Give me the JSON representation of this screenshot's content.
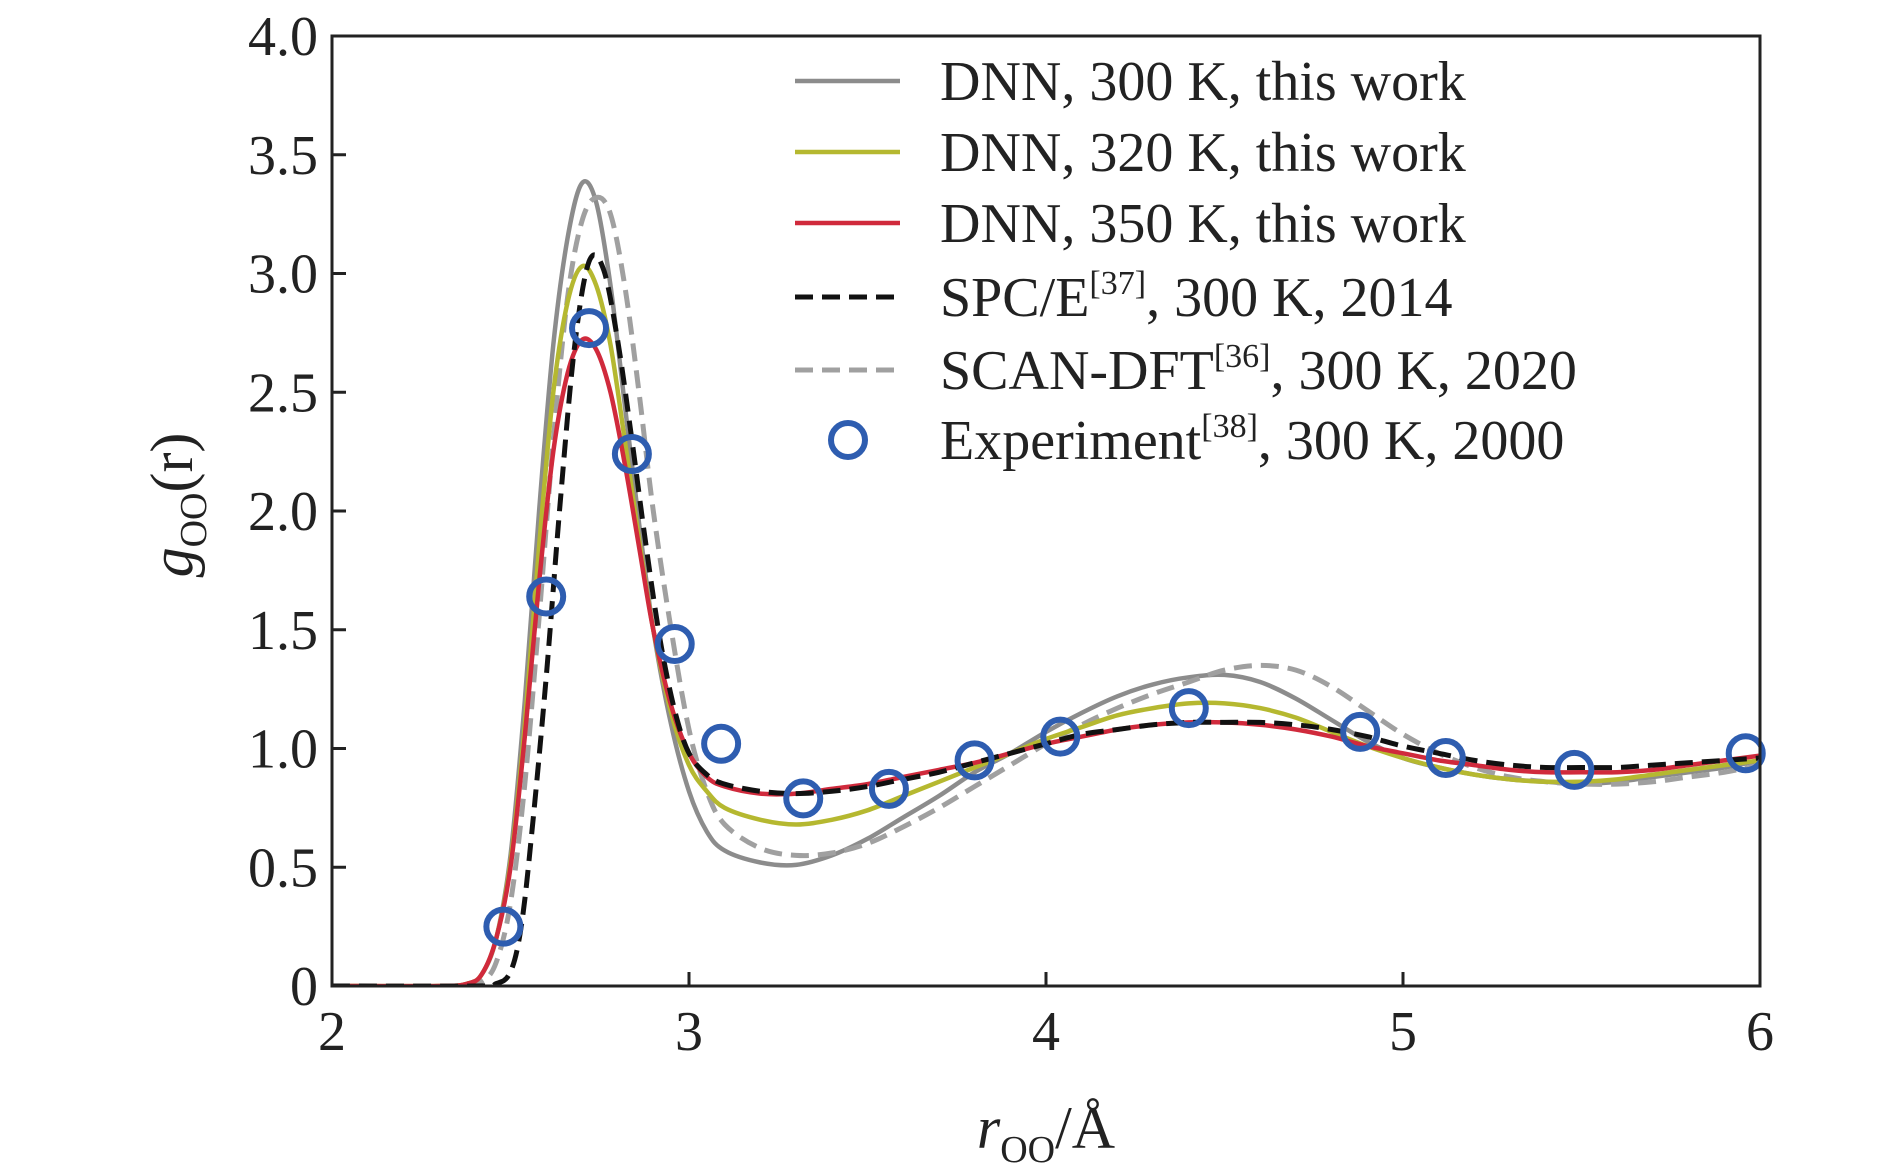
{
  "chart_data": {
    "type": "line",
    "xlabel": {
      "main": "r",
      "sub": "OO",
      "rest": "/Å"
    },
    "ylabel": {
      "main": "g",
      "sub": "OO",
      "rest": "(r)"
    },
    "xlim": [
      2,
      6
    ],
    "ylim": [
      0,
      4.0
    ],
    "xticks": [
      {
        "value": 2,
        "label": "2"
      },
      {
        "value": 3,
        "label": "3"
      },
      {
        "value": 4,
        "label": "4"
      },
      {
        "value": 5,
        "label": "5"
      },
      {
        "value": 6,
        "label": "6"
      }
    ],
    "yticks": [
      {
        "value": 0,
        "label": "0"
      },
      {
        "value": 0.5,
        "label": "0.5"
      },
      {
        "value": 1.0,
        "label": "1.0"
      },
      {
        "value": 1.5,
        "label": "1.5"
      },
      {
        "value": 2.0,
        "label": "2.0"
      },
      {
        "value": 2.5,
        "label": "2.5"
      },
      {
        "value": 3.0,
        "label": "3.0"
      },
      {
        "value": 3.5,
        "label": "3.5"
      },
      {
        "value": 4.0,
        "label": "4.0"
      }
    ],
    "grid": false,
    "legend_position": "top-right",
    "series": [
      {
        "id": "dnn300",
        "label_main": "DNN, 300 K, this work",
        "label_sup": "",
        "label_rest": "",
        "color": "#8c8c8c",
        "style": "solid",
        "points": [
          [
            2.0,
            0
          ],
          [
            2.3,
            0
          ],
          [
            2.38,
            0.01
          ],
          [
            2.42,
            0.05
          ],
          [
            2.46,
            0.2
          ],
          [
            2.5,
            0.55
          ],
          [
            2.54,
            1.2
          ],
          [
            2.58,
            2.0
          ],
          [
            2.62,
            2.7
          ],
          [
            2.66,
            3.15
          ],
          [
            2.7,
            3.38
          ],
          [
            2.74,
            3.3
          ],
          [
            2.78,
            2.95
          ],
          [
            2.82,
            2.45
          ],
          [
            2.86,
            1.95
          ],
          [
            2.9,
            1.5
          ],
          [
            2.95,
            1.1
          ],
          [
            3.0,
            0.82
          ],
          [
            3.05,
            0.65
          ],
          [
            3.1,
            0.57
          ],
          [
            3.2,
            0.52
          ],
          [
            3.3,
            0.51
          ],
          [
            3.4,
            0.55
          ],
          [
            3.5,
            0.62
          ],
          [
            3.6,
            0.71
          ],
          [
            3.7,
            0.8
          ],
          [
            3.8,
            0.9
          ],
          [
            3.9,
            0.98
          ],
          [
            4.0,
            1.07
          ],
          [
            4.1,
            1.15
          ],
          [
            4.2,
            1.22
          ],
          [
            4.3,
            1.27
          ],
          [
            4.4,
            1.3
          ],
          [
            4.5,
            1.31
          ],
          [
            4.6,
            1.28
          ],
          [
            4.7,
            1.21
          ],
          [
            4.8,
            1.12
          ],
          [
            4.9,
            1.03
          ],
          [
            5.0,
            0.96
          ],
          [
            5.1,
            0.92
          ],
          [
            5.2,
            0.89
          ],
          [
            5.3,
            0.87
          ],
          [
            5.4,
            0.86
          ],
          [
            5.5,
            0.85
          ],
          [
            5.6,
            0.86
          ],
          [
            5.7,
            0.88
          ],
          [
            5.8,
            0.9
          ],
          [
            5.9,
            0.92
          ],
          [
            6.0,
            0.95
          ]
        ]
      },
      {
        "id": "dnn320",
        "label_main": "DNN, 320 K, this work",
        "label_sup": "",
        "label_rest": "",
        "color": "#b5b830",
        "style": "solid",
        "points": [
          [
            2.0,
            0
          ],
          [
            2.3,
            0
          ],
          [
            2.38,
            0.01
          ],
          [
            2.42,
            0.05
          ],
          [
            2.46,
            0.2
          ],
          [
            2.5,
            0.52
          ],
          [
            2.54,
            1.1
          ],
          [
            2.58,
            1.85
          ],
          [
            2.62,
            2.5
          ],
          [
            2.66,
            2.88
          ],
          [
            2.7,
            3.03
          ],
          [
            2.74,
            2.95
          ],
          [
            2.78,
            2.7
          ],
          [
            2.82,
            2.3
          ],
          [
            2.86,
            1.88
          ],
          [
            2.9,
            1.5
          ],
          [
            2.95,
            1.15
          ],
          [
            3.0,
            0.93
          ],
          [
            3.05,
            0.82
          ],
          [
            3.1,
            0.75
          ],
          [
            3.2,
            0.7
          ],
          [
            3.3,
            0.68
          ],
          [
            3.4,
            0.7
          ],
          [
            3.5,
            0.74
          ],
          [
            3.6,
            0.8
          ],
          [
            3.7,
            0.86
          ],
          [
            3.8,
            0.92
          ],
          [
            3.9,
            0.98
          ],
          [
            4.0,
            1.04
          ],
          [
            4.1,
            1.09
          ],
          [
            4.2,
            1.14
          ],
          [
            4.3,
            1.17
          ],
          [
            4.4,
            1.19
          ],
          [
            4.5,
            1.19
          ],
          [
            4.6,
            1.17
          ],
          [
            4.7,
            1.13
          ],
          [
            4.8,
            1.07
          ],
          [
            4.9,
            1.01
          ],
          [
            5.0,
            0.96
          ],
          [
            5.1,
            0.92
          ],
          [
            5.2,
            0.89
          ],
          [
            5.3,
            0.87
          ],
          [
            5.4,
            0.86
          ],
          [
            5.5,
            0.86
          ],
          [
            5.6,
            0.87
          ],
          [
            5.7,
            0.89
          ],
          [
            5.8,
            0.91
          ],
          [
            5.9,
            0.93
          ],
          [
            6.0,
            0.95
          ]
        ]
      },
      {
        "id": "dnn350",
        "label_main": "DNN, 350 K, this work",
        "label_sup": "",
        "label_rest": "",
        "color": "#d02a3c",
        "style": "solid",
        "points": [
          [
            2.0,
            0
          ],
          [
            2.3,
            0
          ],
          [
            2.38,
            0.01
          ],
          [
            2.42,
            0.05
          ],
          [
            2.46,
            0.2
          ],
          [
            2.5,
            0.5
          ],
          [
            2.54,
            1.05
          ],
          [
            2.58,
            1.7
          ],
          [
            2.62,
            2.25
          ],
          [
            2.66,
            2.58
          ],
          [
            2.7,
            2.72
          ],
          [
            2.74,
            2.68
          ],
          [
            2.78,
            2.5
          ],
          [
            2.82,
            2.2
          ],
          [
            2.86,
            1.85
          ],
          [
            2.9,
            1.5
          ],
          [
            2.95,
            1.18
          ],
          [
            3.0,
            0.98
          ],
          [
            3.05,
            0.88
          ],
          [
            3.1,
            0.84
          ],
          [
            3.2,
            0.81
          ],
          [
            3.3,
            0.81
          ],
          [
            3.4,
            0.83
          ],
          [
            3.5,
            0.85
          ],
          [
            3.6,
            0.88
          ],
          [
            3.7,
            0.91
          ],
          [
            3.8,
            0.94
          ],
          [
            3.9,
            0.98
          ],
          [
            4.0,
            1.02
          ],
          [
            4.1,
            1.05
          ],
          [
            4.2,
            1.08
          ],
          [
            4.3,
            1.1
          ],
          [
            4.4,
            1.11
          ],
          [
            4.5,
            1.11
          ],
          [
            4.6,
            1.1
          ],
          [
            4.7,
            1.08
          ],
          [
            4.8,
            1.05
          ],
          [
            4.9,
            1.01
          ],
          [
            5.0,
            0.98
          ],
          [
            5.1,
            0.95
          ],
          [
            5.2,
            0.93
          ],
          [
            5.3,
            0.91
          ],
          [
            5.4,
            0.9
          ],
          [
            5.5,
            0.9
          ],
          [
            5.6,
            0.9
          ],
          [
            5.7,
            0.91
          ],
          [
            5.8,
            0.93
          ],
          [
            5.9,
            0.95
          ],
          [
            6.0,
            0.97
          ]
        ]
      },
      {
        "id": "spce",
        "label_main": "SPC/E",
        "label_sup": "[37]",
        "label_rest": ", 300 K, 2014",
        "color": "#111111",
        "style": "dashed",
        "points": [
          [
            2.0,
            0
          ],
          [
            2.4,
            0
          ],
          [
            2.46,
            0.01
          ],
          [
            2.5,
            0.06
          ],
          [
            2.53,
            0.25
          ],
          [
            2.56,
            0.65
          ],
          [
            2.6,
            1.3
          ],
          [
            2.64,
            2.05
          ],
          [
            2.68,
            2.7
          ],
          [
            2.72,
            3.05
          ],
          [
            2.76,
            3.02
          ],
          [
            2.8,
            2.72
          ],
          [
            2.84,
            2.3
          ],
          [
            2.88,
            1.85
          ],
          [
            2.92,
            1.45
          ],
          [
            2.96,
            1.16
          ],
          [
            3.0,
            0.98
          ],
          [
            3.05,
            0.89
          ],
          [
            3.1,
            0.85
          ],
          [
            3.2,
            0.82
          ],
          [
            3.3,
            0.81
          ],
          [
            3.4,
            0.82
          ],
          [
            3.5,
            0.84
          ],
          [
            3.6,
            0.87
          ],
          [
            3.7,
            0.9
          ],
          [
            3.8,
            0.94
          ],
          [
            3.9,
            0.98
          ],
          [
            4.0,
            1.02
          ],
          [
            4.1,
            1.06
          ],
          [
            4.2,
            1.08
          ],
          [
            4.3,
            1.1
          ],
          [
            4.4,
            1.11
          ],
          [
            4.5,
            1.11
          ],
          [
            4.6,
            1.11
          ],
          [
            4.7,
            1.1
          ],
          [
            4.8,
            1.08
          ],
          [
            4.9,
            1.05
          ],
          [
            5.0,
            1.01
          ],
          [
            5.1,
            0.98
          ],
          [
            5.2,
            0.95
          ],
          [
            5.3,
            0.93
          ],
          [
            5.4,
            0.92
          ],
          [
            5.5,
            0.92
          ],
          [
            5.6,
            0.92
          ],
          [
            5.7,
            0.93
          ],
          [
            5.8,
            0.94
          ],
          [
            5.9,
            0.95
          ],
          [
            6.0,
            0.96
          ]
        ]
      },
      {
        "id": "scan",
        "label_main": "SCAN-DFT",
        "label_sup": "[36]",
        "label_rest": ", 300 K, 2020",
        "color": "#a0a0a0",
        "style": "dashed",
        "points": [
          [
            2.0,
            0
          ],
          [
            2.36,
            0
          ],
          [
            2.42,
            0.02
          ],
          [
            2.46,
            0.1
          ],
          [
            2.5,
            0.35
          ],
          [
            2.54,
            0.85
          ],
          [
            2.58,
            1.55
          ],
          [
            2.62,
            2.3
          ],
          [
            2.66,
            2.9
          ],
          [
            2.7,
            3.22
          ],
          [
            2.74,
            3.32
          ],
          [
            2.78,
            3.25
          ],
          [
            2.82,
            2.95
          ],
          [
            2.86,
            2.5
          ],
          [
            2.9,
            2.0
          ],
          [
            2.95,
            1.5
          ],
          [
            3.0,
            1.08
          ],
          [
            3.05,
            0.82
          ],
          [
            3.1,
            0.68
          ],
          [
            3.2,
            0.58
          ],
          [
            3.3,
            0.55
          ],
          [
            3.4,
            0.56
          ],
          [
            3.5,
            0.6
          ],
          [
            3.6,
            0.67
          ],
          [
            3.7,
            0.75
          ],
          [
            3.8,
            0.84
          ],
          [
            3.9,
            0.93
          ],
          [
            4.0,
            1.02
          ],
          [
            4.1,
            1.1
          ],
          [
            4.2,
            1.17
          ],
          [
            4.3,
            1.23
          ],
          [
            4.4,
            1.28
          ],
          [
            4.5,
            1.33
          ],
          [
            4.6,
            1.35
          ],
          [
            4.7,
            1.33
          ],
          [
            4.8,
            1.26
          ],
          [
            4.9,
            1.16
          ],
          [
            5.0,
            1.06
          ],
          [
            5.1,
            0.98
          ],
          [
            5.2,
            0.92
          ],
          [
            5.3,
            0.88
          ],
          [
            5.4,
            0.86
          ],
          [
            5.5,
            0.85
          ],
          [
            5.6,
            0.85
          ],
          [
            5.7,
            0.86
          ],
          [
            5.8,
            0.88
          ],
          [
            5.9,
            0.9
          ],
          [
            6.0,
            0.93
          ]
        ]
      },
      {
        "id": "experiment",
        "label_main": "Experiment",
        "label_sup": "[38]",
        "label_rest": ", 300 K, 2000",
        "color": "#2e5db0",
        "style": "markers",
        "points": [
          [
            2.48,
            0.25
          ],
          [
            2.6,
            1.64
          ],
          [
            2.72,
            2.77
          ],
          [
            2.84,
            2.24
          ],
          [
            2.96,
            1.44
          ],
          [
            3.09,
            1.02
          ],
          [
            3.32,
            0.79
          ],
          [
            3.56,
            0.83
          ],
          [
            3.8,
            0.95
          ],
          [
            4.04,
            1.05
          ],
          [
            4.4,
            1.17
          ],
          [
            4.88,
            1.07
          ],
          [
            5.12,
            0.96
          ],
          [
            5.48,
            0.91
          ],
          [
            5.96,
            0.98
          ]
        ]
      }
    ]
  }
}
